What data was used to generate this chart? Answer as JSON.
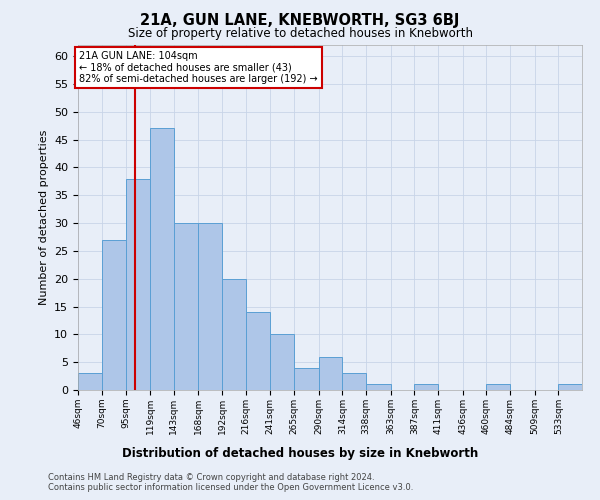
{
  "title": "21A, GUN LANE, KNEBWORTH, SG3 6BJ",
  "subtitle": "Size of property relative to detached houses in Knebworth",
  "xlabel": "Distribution of detached houses by size in Knebworth",
  "ylabel": "Number of detached properties",
  "bar_values": [
    3,
    27,
    38,
    47,
    30,
    30,
    20,
    14,
    10,
    4,
    6,
    3,
    1,
    0,
    1,
    0,
    0,
    1,
    0,
    0,
    1
  ],
  "categories": [
    "46sqm",
    "70sqm",
    "95sqm",
    "119sqm",
    "143sqm",
    "168sqm",
    "192sqm",
    "216sqm",
    "241sqm",
    "265sqm",
    "290sqm",
    "314sqm",
    "338sqm",
    "363sqm",
    "387sqm",
    "411sqm",
    "436sqm",
    "460sqm",
    "484sqm",
    "509sqm",
    "533sqm"
  ],
  "bar_left_edges": [
    46,
    70,
    95,
    119,
    143,
    168,
    192,
    216,
    241,
    265,
    290,
    314,
    338,
    363,
    387,
    411,
    436,
    460,
    484,
    509,
    533
  ],
  "bar_right_edges": [
    70,
    95,
    119,
    143,
    168,
    192,
    216,
    241,
    265,
    290,
    314,
    338,
    363,
    387,
    411,
    436,
    460,
    484,
    509,
    533,
    557
  ],
  "bar_color": "#aec6e8",
  "bar_edge_color": "#5a9fd4",
  "vline_x": 104,
  "vline_color": "#cc0000",
  "ylim": [
    0,
    62
  ],
  "yticks": [
    0,
    5,
    10,
    15,
    20,
    25,
    30,
    35,
    40,
    45,
    50,
    55,
    60
  ],
  "annotation_title": "21A GUN LANE: 104sqm",
  "annotation_line1": "← 18% of detached houses are smaller (43)",
  "annotation_line2": "82% of semi-detached houses are larger (192) →",
  "annotation_box_color": "#ffffff",
  "annotation_box_edge": "#cc0000",
  "grid_color": "#c8d4e8",
  "background_color": "#e8eef8",
  "footer1": "Contains HM Land Registry data © Crown copyright and database right 2024.",
  "footer2": "Contains public sector information licensed under the Open Government Licence v3.0."
}
